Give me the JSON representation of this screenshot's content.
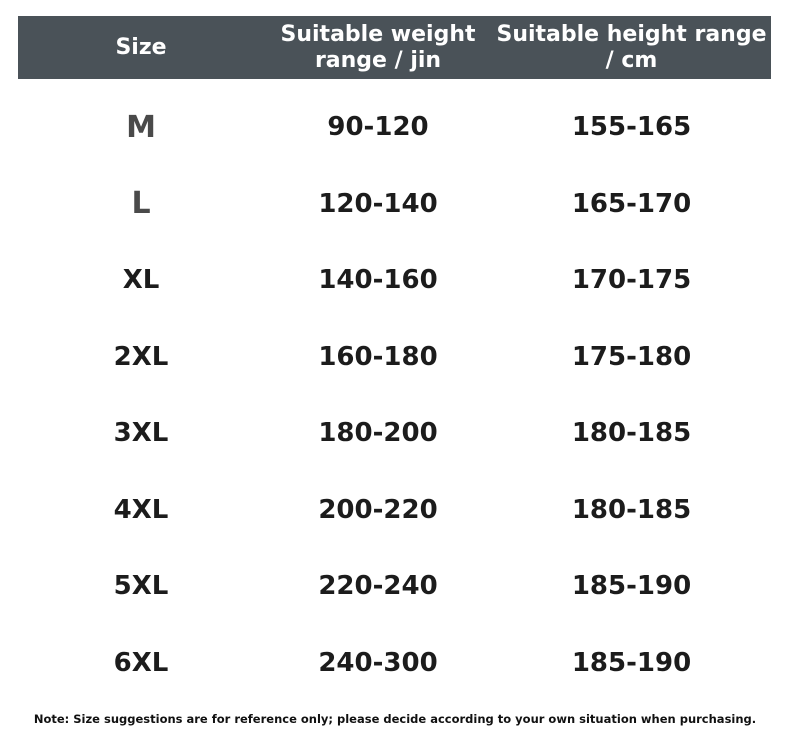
{
  "header": {
    "size": "Size",
    "weight": "Suitable weight range / jin",
    "height": "Suitable height range / cm"
  },
  "rows": [
    {
      "size": "M",
      "weight": "90-120",
      "height": "155-165"
    },
    {
      "size": "L",
      "weight": "120-140",
      "height": "165-170"
    },
    {
      "size": "XL",
      "weight": "140-160",
      "height": "170-175"
    },
    {
      "size": "2XL",
      "weight": "160-180",
      "height": "175-180"
    },
    {
      "size": "3XL",
      "weight": "180-200",
      "height": "180-185"
    },
    {
      "size": "4XL",
      "weight": "200-220",
      "height": "180-185"
    },
    {
      "size": "5XL",
      "weight": "220-240",
      "height": "185-190"
    },
    {
      "size": "6XL",
      "weight": "240-300",
      "height": "185-190"
    }
  ],
  "note": "Note: Size suggestions are for reference only; please decide according to your own situation when purchasing.",
  "colors": {
    "header_bg": "#4a5258",
    "header_text": "#ffffff",
    "body_text": "#1c1c1c"
  }
}
